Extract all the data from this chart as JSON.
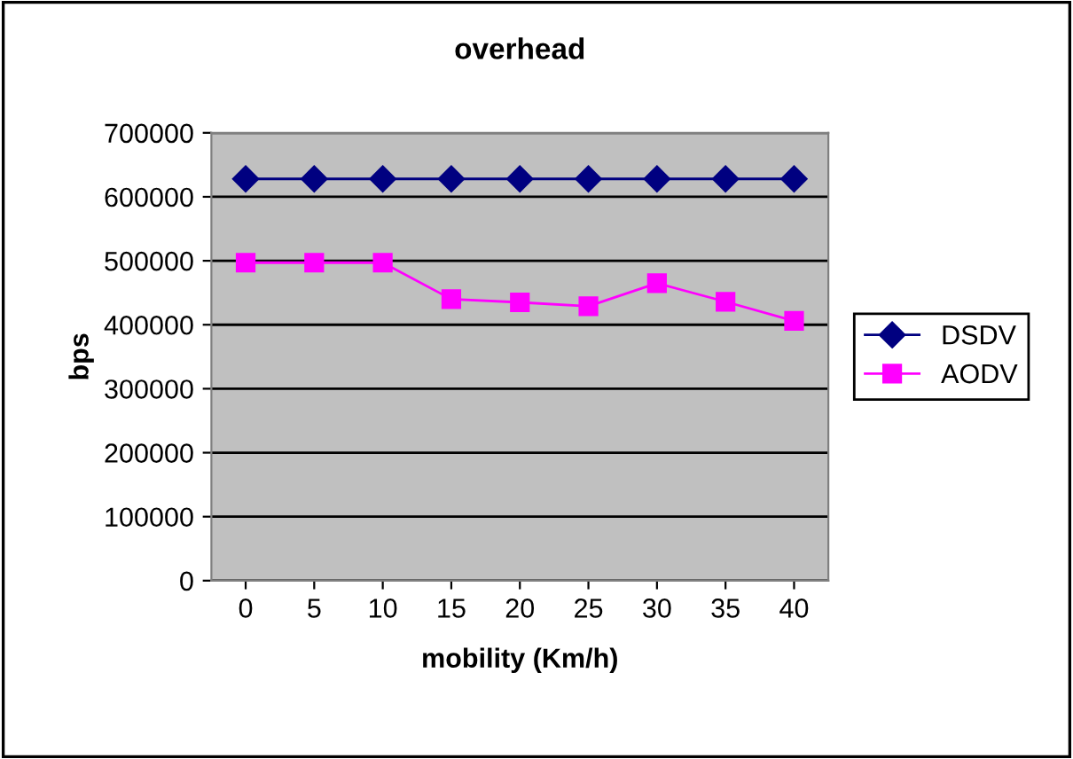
{
  "chart_data": {
    "type": "line",
    "title": "overhead",
    "xlabel": "mobility (Km/h)",
    "ylabel": "bps",
    "categories": [
      "0",
      "5",
      "10",
      "15",
      "20",
      "25",
      "30",
      "35",
      "40"
    ],
    "series": [
      {
        "name": "DSDV",
        "color": "#000080",
        "marker": "diamond",
        "values": [
          628000,
          628000,
          628000,
          628000,
          628000,
          628000,
          628000,
          628000,
          628000
        ]
      },
      {
        "name": "AODV",
        "color": "#ff00ff",
        "marker": "square",
        "values": [
          497000,
          497000,
          497000,
          440000,
          435000,
          429000,
          465000,
          436000,
          406000
        ]
      }
    ],
    "ylim": [
      0,
      700000
    ],
    "yticks": [
      0,
      100000,
      200000,
      300000,
      400000,
      500000,
      600000,
      700000
    ],
    "grid": "y",
    "legend": "right",
    "line_style": "solid"
  }
}
